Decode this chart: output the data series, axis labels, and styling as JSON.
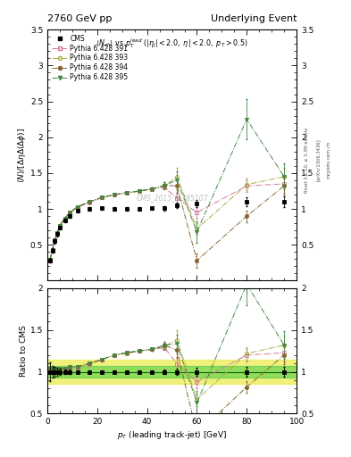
{
  "title_left": "2760 GeV pp",
  "title_right": "Underlying Event",
  "ylabel_main": "$\\langle N\\rangle/[\\Delta\\eta\\Delta(\\Delta\\phi)]$",
  "ylabel_ratio": "Ratio to CMS",
  "xlabel": "$p_T$ (leading track-jet) [GeV]",
  "watermark": "CMS_2015_I1385107",
  "rivet_label": "Rivet 3.1.10, ≥ 3.3M events",
  "arxiv_label": "[arXiv:1306.3436]",
  "mcplots_label": "mcplots.cern.ch",
  "ylim_main": [
    0.0,
    3.5
  ],
  "ylim_ratio": [
    0.5,
    2.0
  ],
  "xlim": [
    0,
    100
  ],
  "cms_x": [
    1.0,
    2.0,
    3.0,
    4.0,
    5.0,
    7.0,
    9.0,
    12.0,
    17.0,
    22.0,
    27.0,
    32.0,
    37.0,
    42.0,
    47.0,
    52.0,
    60.0,
    80.0,
    95.0
  ],
  "cms_y": [
    0.28,
    0.42,
    0.55,
    0.65,
    0.74,
    0.84,
    0.9,
    0.97,
    1.0,
    1.01,
    1.0,
    1.0,
    1.0,
    1.01,
    1.01,
    1.05,
    1.08,
    1.1,
    1.1
  ],
  "cms_yerr": [
    0.03,
    0.03,
    0.03,
    0.03,
    0.03,
    0.02,
    0.02,
    0.02,
    0.02,
    0.02,
    0.02,
    0.02,
    0.02,
    0.02,
    0.03,
    0.04,
    0.05,
    0.06,
    0.07
  ],
  "py391_x": [
    1.0,
    2.0,
    3.0,
    4.0,
    5.0,
    7.0,
    9.0,
    12.0,
    17.0,
    22.0,
    27.0,
    32.0,
    37.0,
    42.0,
    47.0,
    52.0,
    60.0,
    80.0,
    95.0
  ],
  "py391_y": [
    0.29,
    0.43,
    0.57,
    0.67,
    0.77,
    0.87,
    0.94,
    1.02,
    1.09,
    1.16,
    1.2,
    1.22,
    1.25,
    1.28,
    1.3,
    1.15,
    0.95,
    1.32,
    1.35
  ],
  "py391_yerr": [
    0.005,
    0.005,
    0.005,
    0.005,
    0.005,
    0.005,
    0.005,
    0.008,
    0.008,
    0.01,
    0.01,
    0.01,
    0.01,
    0.015,
    0.03,
    0.08,
    0.08,
    0.08,
    0.12
  ],
  "py393_x": [
    1.0,
    2.0,
    3.0,
    4.0,
    5.0,
    7.0,
    9.0,
    12.0,
    17.0,
    22.0,
    27.0,
    32.0,
    37.0,
    42.0,
    47.0,
    52.0,
    60.0,
    80.0,
    95.0
  ],
  "py393_y": [
    0.29,
    0.43,
    0.57,
    0.67,
    0.77,
    0.87,
    0.95,
    1.03,
    1.1,
    1.16,
    1.2,
    1.22,
    1.25,
    1.28,
    1.32,
    1.45,
    0.72,
    1.34,
    1.45
  ],
  "py393_yerr": [
    0.005,
    0.005,
    0.005,
    0.005,
    0.005,
    0.005,
    0.005,
    0.008,
    0.008,
    0.01,
    0.01,
    0.01,
    0.01,
    0.015,
    0.04,
    0.12,
    0.08,
    0.08,
    0.12
  ],
  "py394_x": [
    1.0,
    2.0,
    3.0,
    4.0,
    5.0,
    7.0,
    9.0,
    12.0,
    17.0,
    22.0,
    27.0,
    32.0,
    37.0,
    42.0,
    47.0,
    52.0,
    60.0,
    80.0,
    95.0
  ],
  "py394_y": [
    0.29,
    0.43,
    0.57,
    0.67,
    0.77,
    0.87,
    0.95,
    1.03,
    1.1,
    1.16,
    1.2,
    1.23,
    1.25,
    1.28,
    1.33,
    1.32,
    0.28,
    0.9,
    1.32
  ],
  "py394_yerr": [
    0.005,
    0.005,
    0.005,
    0.005,
    0.005,
    0.005,
    0.005,
    0.008,
    0.008,
    0.01,
    0.01,
    0.01,
    0.01,
    0.015,
    0.04,
    0.1,
    0.1,
    0.08,
    0.12
  ],
  "py395_x": [
    1.0,
    2.0,
    3.0,
    4.0,
    5.0,
    7.0,
    9.0,
    12.0,
    17.0,
    22.0,
    27.0,
    32.0,
    37.0,
    42.0,
    47.0,
    52.0,
    60.0,
    80.0,
    95.0
  ],
  "py395_y": [
    0.29,
    0.43,
    0.57,
    0.67,
    0.77,
    0.87,
    0.95,
    1.03,
    1.1,
    1.16,
    1.2,
    1.23,
    1.25,
    1.28,
    1.33,
    1.4,
    0.68,
    2.25,
    1.45
  ],
  "py395_yerr": [
    0.005,
    0.005,
    0.005,
    0.005,
    0.005,
    0.005,
    0.005,
    0.008,
    0.008,
    0.01,
    0.01,
    0.01,
    0.01,
    0.015,
    0.04,
    0.12,
    0.15,
    0.28,
    0.18
  ],
  "color_391": "#cc7799",
  "color_393": "#aaaa44",
  "color_394": "#886633",
  "color_395": "#448844",
  "green_band_lo": 0.93,
  "green_band_hi": 1.07,
  "yellow_band_lo": 0.86,
  "yellow_band_hi": 1.14
}
